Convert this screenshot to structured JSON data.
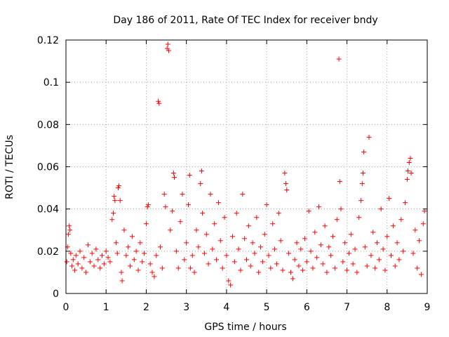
{
  "chart_data": {
    "type": "scatter",
    "title": "Day 186 of 2011, Rate Of TEC Index for receiver bndy",
    "xlabel": "GPS time / hours",
    "ylabel": "ROTI / TECUs",
    "xlim": [
      0,
      9
    ],
    "ylim": [
      0,
      0.12
    ],
    "xticks": [
      "0",
      "1",
      "2",
      "3",
      "4",
      "5",
      "6",
      "7",
      "8",
      "9"
    ],
    "yticks": [
      "0",
      "0.02",
      "0.04",
      "0.06",
      "0.08",
      "0.1",
      "0.12"
    ],
    "grid": true,
    "marker": "+",
    "color": "#ff0000",
    "series": [
      {
        "name": "ROTI",
        "points": [
          [
            0.02,
            0.015
          ],
          [
            0.04,
            0.022
          ],
          [
            0.06,
            0.028
          ],
          [
            0.08,
            0.032
          ],
          [
            0.1,
            0.03
          ],
          [
            0.12,
            0.019
          ],
          [
            0.15,
            0.013
          ],
          [
            0.18,
            0.016
          ],
          [
            0.22,
            0.011
          ],
          [
            0.25,
            0.018
          ],
          [
            0.3,
            0.014
          ],
          [
            0.35,
            0.02
          ],
          [
            0.4,
            0.012
          ],
          [
            0.45,
            0.017
          ],
          [
            0.5,
            0.01
          ],
          [
            0.55,
            0.023
          ],
          [
            0.6,
            0.015
          ],
          [
            0.65,
            0.019
          ],
          [
            0.7,
            0.013
          ],
          [
            0.75,
            0.021
          ],
          [
            0.8,
            0.016
          ],
          [
            0.85,
            0.012
          ],
          [
            0.9,
            0.018
          ],
          [
            0.95,
            0.014
          ],
          [
            1.0,
            0.02
          ],
          [
            1.05,
            0.017
          ],
          [
            1.1,
            0.015
          ],
          [
            1.15,
            0.035
          ],
          [
            1.18,
            0.038
          ],
          [
            1.2,
            0.046
          ],
          [
            1.22,
            0.044
          ],
          [
            1.25,
            0.024
          ],
          [
            1.28,
            0.019
          ],
          [
            1.3,
            0.05
          ],
          [
            1.32,
            0.051
          ],
          [
            1.35,
            0.044
          ],
          [
            1.38,
            0.01
          ],
          [
            1.4,
            0.006
          ],
          [
            1.45,
            0.03
          ],
          [
            1.5,
            0.018
          ],
          [
            1.55,
            0.022
          ],
          [
            1.6,
            0.013
          ],
          [
            1.65,
            0.027
          ],
          [
            1.7,
            0.016
          ],
          [
            1.75,
            0.02
          ],
          [
            1.8,
            0.011
          ],
          [
            1.85,
            0.024
          ],
          [
            1.9,
            0.015
          ],
          [
            1.95,
            0.019
          ],
          [
            2.0,
            0.033
          ],
          [
            2.03,
            0.041
          ],
          [
            2.05,
            0.042
          ],
          [
            2.1,
            0.014
          ],
          [
            2.15,
            0.01
          ],
          [
            2.2,
            0.008
          ],
          [
            2.25,
            0.018
          ],
          [
            2.3,
            0.091
          ],
          [
            2.32,
            0.09
          ],
          [
            2.35,
            0.022
          ],
          [
            2.4,
            0.012
          ],
          [
            2.45,
            0.047
          ],
          [
            2.48,
            0.041
          ],
          [
            2.52,
            0.116
          ],
          [
            2.54,
            0.118
          ],
          [
            2.56,
            0.115
          ],
          [
            2.6,
            0.03
          ],
          [
            2.65,
            0.039
          ],
          [
            2.68,
            0.057
          ],
          [
            2.7,
            0.055
          ],
          [
            2.75,
            0.02
          ],
          [
            2.8,
            0.012
          ],
          [
            2.85,
            0.034
          ],
          [
            2.9,
            0.047
          ],
          [
            2.95,
            0.016
          ],
          [
            3.0,
            0.024
          ],
          [
            3.05,
            0.042
          ],
          [
            3.08,
            0.056
          ],
          [
            3.1,
            0.012
          ],
          [
            3.15,
            0.018
          ],
          [
            3.2,
            0.01
          ],
          [
            3.25,
            0.03
          ],
          [
            3.3,
            0.022
          ],
          [
            3.35,
            0.052
          ],
          [
            3.38,
            0.058
          ],
          [
            3.4,
            0.038
          ],
          [
            3.45,
            0.019
          ],
          [
            3.5,
            0.028
          ],
          [
            3.55,
            0.014
          ],
          [
            3.6,
            0.047
          ],
          [
            3.65,
            0.021
          ],
          [
            3.7,
            0.033
          ],
          [
            3.75,
            0.016
          ],
          [
            3.8,
            0.043
          ],
          [
            3.85,
            0.025
          ],
          [
            3.9,
            0.012
          ],
          [
            3.95,
            0.036
          ],
          [
            4.0,
            0.018
          ],
          [
            4.05,
            0.006
          ],
          [
            4.1,
            0.004
          ],
          [
            4.15,
            0.027
          ],
          [
            4.2,
            0.015
          ],
          [
            4.25,
            0.038
          ],
          [
            4.3,
            0.021
          ],
          [
            4.35,
            0.011
          ],
          [
            4.4,
            0.047
          ],
          [
            4.45,
            0.026
          ],
          [
            4.5,
            0.016
          ],
          [
            4.55,
            0.032
          ],
          [
            4.6,
            0.013
          ],
          [
            4.65,
            0.024
          ],
          [
            4.7,
            0.019
          ],
          [
            4.75,
            0.036
          ],
          [
            4.8,
            0.01
          ],
          [
            4.85,
            0.022
          ],
          [
            4.9,
            0.015
          ],
          [
            4.95,
            0.028
          ],
          [
            5.0,
            0.042
          ],
          [
            5.05,
            0.018
          ],
          [
            5.1,
            0.012
          ],
          [
            5.15,
            0.033
          ],
          [
            5.2,
            0.021
          ],
          [
            5.25,
            0.014
          ],
          [
            5.3,
            0.038
          ],
          [
            5.35,
            0.025
          ],
          [
            5.4,
            0.011
          ],
          [
            5.45,
            0.057
          ],
          [
            5.48,
            0.052
          ],
          [
            5.5,
            0.049
          ],
          [
            5.55,
            0.019
          ],
          [
            5.6,
            0.01
          ],
          [
            5.65,
            0.007
          ],
          [
            5.7,
            0.016
          ],
          [
            5.75,
            0.024
          ],
          [
            5.8,
            0.013
          ],
          [
            5.85,
            0.021
          ],
          [
            5.9,
            0.011
          ],
          [
            5.95,
            0.026
          ],
          [
            6.0,
            0.015
          ],
          [
            6.05,
            0.039
          ],
          [
            6.1,
            0.02
          ],
          [
            6.15,
            0.012
          ],
          [
            6.2,
            0.029
          ],
          [
            6.25,
            0.017
          ],
          [
            6.3,
            0.041
          ],
          [
            6.35,
            0.023
          ],
          [
            6.4,
            0.014
          ],
          [
            6.45,
            0.032
          ],
          [
            6.5,
            0.01
          ],
          [
            6.55,
            0.022
          ],
          [
            6.6,
            0.018
          ],
          [
            6.65,
            0.027
          ],
          [
            6.7,
            0.012
          ],
          [
            6.75,
            0.035
          ],
          [
            6.8,
            0.111
          ],
          [
            6.82,
            0.053
          ],
          [
            6.85,
            0.04
          ],
          [
            6.9,
            0.015
          ],
          [
            6.95,
            0.024
          ],
          [
            7.0,
            0.011
          ],
          [
            7.05,
            0.019
          ],
          [
            7.1,
            0.028
          ],
          [
            7.15,
            0.014
          ],
          [
            7.2,
            0.021
          ],
          [
            7.25,
            0.01
          ],
          [
            7.3,
            0.036
          ],
          [
            7.35,
            0.044
          ],
          [
            7.38,
            0.052
          ],
          [
            7.4,
            0.057
          ],
          [
            7.42,
            0.067
          ],
          [
            7.45,
            0.022
          ],
          [
            7.5,
            0.013
          ],
          [
            7.55,
            0.074
          ],
          [
            7.6,
            0.018
          ],
          [
            7.65,
            0.029
          ],
          [
            7.7,
            0.012
          ],
          [
            7.75,
            0.024
          ],
          [
            7.8,
            0.016
          ],
          [
            7.85,
            0.04
          ],
          [
            7.9,
            0.021
          ],
          [
            7.95,
            0.011
          ],
          [
            8.0,
            0.027
          ],
          [
            8.05,
            0.045
          ],
          [
            8.1,
            0.018
          ],
          [
            8.15,
            0.032
          ],
          [
            8.2,
            0.013
          ],
          [
            8.25,
            0.024
          ],
          [
            8.3,
            0.016
          ],
          [
            8.35,
            0.035
          ],
          [
            8.4,
            0.02
          ],
          [
            8.45,
            0.043
          ],
          [
            8.5,
            0.054
          ],
          [
            8.52,
            0.058
          ],
          [
            8.55,
            0.062
          ],
          [
            8.58,
            0.064
          ],
          [
            8.6,
            0.057
          ],
          [
            8.65,
            0.019
          ],
          [
            8.7,
            0.03
          ],
          [
            8.75,
            0.012
          ],
          [
            8.8,
            0.025
          ],
          [
            8.85,
            0.009
          ],
          [
            8.9,
            0.033
          ],
          [
            8.93,
            0.039
          ]
        ]
      }
    ]
  }
}
